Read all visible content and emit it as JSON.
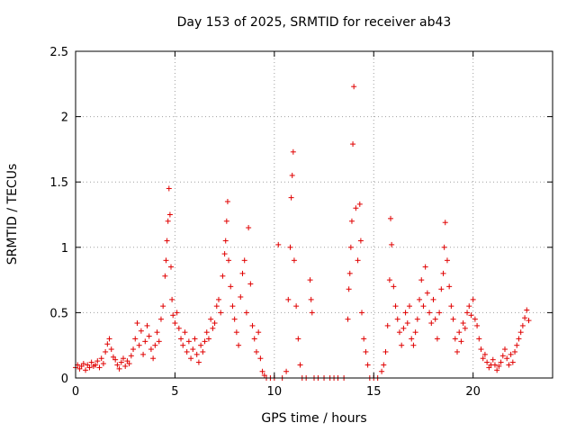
{
  "chart_data": {
    "type": "scatter",
    "title": "Day 153 of 2025, SRMTID for receiver ab43",
    "xlabel": "GPS time / hours",
    "ylabel": "SRMTID / TECUs",
    "xlim": [
      0,
      24
    ],
    "ylim": [
      0,
      2.5
    ],
    "xticks": [
      0,
      5,
      10,
      15,
      20
    ],
    "xtick_labels": [
      "0",
      "5",
      "10",
      "15",
      "20"
    ],
    "yticks": [
      0,
      0.5,
      1,
      1.5,
      2,
      2.5
    ],
    "ytick_labels": [
      "0",
      "0.5",
      "1",
      "1.5",
      "2",
      "2.5"
    ],
    "grid": true,
    "marker": "+",
    "color": "#e00000",
    "series": [
      {
        "name": "SRMTID",
        "points": [
          [
            0.0,
            0.08
          ],
          [
            0.1,
            0.1
          ],
          [
            0.2,
            0.07
          ],
          [
            0.3,
            0.09
          ],
          [
            0.4,
            0.11
          ],
          [
            0.5,
            0.06
          ],
          [
            0.6,
            0.1
          ],
          [
            0.7,
            0.08
          ],
          [
            0.8,
            0.12
          ],
          [
            0.9,
            0.09
          ],
          [
            1.0,
            0.1
          ],
          [
            1.1,
            0.13
          ],
          [
            1.2,
            0.08
          ],
          [
            1.3,
            0.15
          ],
          [
            1.4,
            0.11
          ],
          [
            1.5,
            0.2
          ],
          [
            1.6,
            0.26
          ],
          [
            1.7,
            0.3
          ],
          [
            1.8,
            0.22
          ],
          [
            1.9,
            0.16
          ],
          [
            2.0,
            0.14
          ],
          [
            2.1,
            0.1
          ],
          [
            2.2,
            0.07
          ],
          [
            2.3,
            0.12
          ],
          [
            2.4,
            0.15
          ],
          [
            2.5,
            0.09
          ],
          [
            2.6,
            0.13
          ],
          [
            2.7,
            0.11
          ],
          [
            2.8,
            0.17
          ],
          [
            2.9,
            0.22
          ],
          [
            3.0,
            0.3
          ],
          [
            3.1,
            0.42
          ],
          [
            3.2,
            0.25
          ],
          [
            3.3,
            0.36
          ],
          [
            3.4,
            0.18
          ],
          [
            3.5,
            0.28
          ],
          [
            3.6,
            0.4
          ],
          [
            3.7,
            0.32
          ],
          [
            3.8,
            0.22
          ],
          [
            3.9,
            0.15
          ],
          [
            4.0,
            0.25
          ],
          [
            4.1,
            0.35
          ],
          [
            4.2,
            0.28
          ],
          [
            4.3,
            0.45
          ],
          [
            4.4,
            0.55
          ],
          [
            4.5,
            0.78
          ],
          [
            4.55,
            0.9
          ],
          [
            4.6,
            1.05
          ],
          [
            4.65,
            1.2
          ],
          [
            4.7,
            1.45
          ],
          [
            4.75,
            1.25
          ],
          [
            4.8,
            0.85
          ],
          [
            4.85,
            0.6
          ],
          [
            4.9,
            0.48
          ],
          [
            5.0,
            0.42
          ],
          [
            5.1,
            0.5
          ],
          [
            5.2,
            0.38
          ],
          [
            5.3,
            0.3
          ],
          [
            5.4,
            0.25
          ],
          [
            5.5,
            0.35
          ],
          [
            5.6,
            0.2
          ],
          [
            5.7,
            0.28
          ],
          [
            5.8,
            0.15
          ],
          [
            5.9,
            0.22
          ],
          [
            6.0,
            0.3
          ],
          [
            6.1,
            0.18
          ],
          [
            6.2,
            0.12
          ],
          [
            6.3,
            0.25
          ],
          [
            6.4,
            0.2
          ],
          [
            6.5,
            0.28
          ],
          [
            6.6,
            0.35
          ],
          [
            6.7,
            0.3
          ],
          [
            6.8,
            0.45
          ],
          [
            6.9,
            0.38
          ],
          [
            7.0,
            0.42
          ],
          [
            7.1,
            0.55
          ],
          [
            7.2,
            0.6
          ],
          [
            7.3,
            0.5
          ],
          [
            7.4,
            0.78
          ],
          [
            7.5,
            0.95
          ],
          [
            7.55,
            1.05
          ],
          [
            7.6,
            1.2
          ],
          [
            7.65,
            1.35
          ],
          [
            7.7,
            0.9
          ],
          [
            7.8,
            0.7
          ],
          [
            7.9,
            0.55
          ],
          [
            8.0,
            0.45
          ],
          [
            8.1,
            0.35
          ],
          [
            8.2,
            0.25
          ],
          [
            8.3,
            0.62
          ],
          [
            8.4,
            0.8
          ],
          [
            8.5,
            0.9
          ],
          [
            8.6,
            0.5
          ],
          [
            8.7,
            1.15
          ],
          [
            8.8,
            0.72
          ],
          [
            8.9,
            0.4
          ],
          [
            9.0,
            0.3
          ],
          [
            9.1,
            0.2
          ],
          [
            9.2,
            0.35
          ],
          [
            9.3,
            0.15
          ],
          [
            9.4,
            0.05
          ],
          [
            9.5,
            0.02
          ],
          [
            9.6,
            0.0
          ],
          [
            9.8,
            0.0
          ],
          [
            10.0,
            0.0
          ],
          [
            10.2,
            1.02
          ],
          [
            10.4,
            0.0
          ],
          [
            10.6,
            0.05
          ],
          [
            10.7,
            0.6
          ],
          [
            10.8,
            1.0
          ],
          [
            10.85,
            1.38
          ],
          [
            10.9,
            1.55
          ],
          [
            10.95,
            1.73
          ],
          [
            11.0,
            0.9
          ],
          [
            11.1,
            0.55
          ],
          [
            11.2,
            0.3
          ],
          [
            11.3,
            0.1
          ],
          [
            11.4,
            0.0
          ],
          [
            11.6,
            0.0
          ],
          [
            11.8,
            0.75
          ],
          [
            11.85,
            0.6
          ],
          [
            11.9,
            0.5
          ],
          [
            12.0,
            0.0
          ],
          [
            12.2,
            0.0
          ],
          [
            12.5,
            0.0
          ],
          [
            12.8,
            0.0
          ],
          [
            13.0,
            0.0
          ],
          [
            13.2,
            0.0
          ],
          [
            13.5,
            0.0
          ],
          [
            13.7,
            0.45
          ],
          [
            13.75,
            0.68
          ],
          [
            13.8,
            0.8
          ],
          [
            13.85,
            1.0
          ],
          [
            13.9,
            1.2
          ],
          [
            13.95,
            1.79
          ],
          [
            14.0,
            2.23
          ],
          [
            14.1,
            1.3
          ],
          [
            14.2,
            0.9
          ],
          [
            14.3,
            1.33
          ],
          [
            14.35,
            1.05
          ],
          [
            14.4,
            0.5
          ],
          [
            14.5,
            0.3
          ],
          [
            14.6,
            0.2
          ],
          [
            14.7,
            0.1
          ],
          [
            14.8,
            0.0
          ],
          [
            15.0,
            0.0
          ],
          [
            15.2,
            0.0
          ],
          [
            15.4,
            0.05
          ],
          [
            15.5,
            0.1
          ],
          [
            15.6,
            0.2
          ],
          [
            15.7,
            0.4
          ],
          [
            15.8,
            0.75
          ],
          [
            15.85,
            1.22
          ],
          [
            15.9,
            1.02
          ],
          [
            16.0,
            0.7
          ],
          [
            16.1,
            0.55
          ],
          [
            16.2,
            0.45
          ],
          [
            16.3,
            0.35
          ],
          [
            16.4,
            0.25
          ],
          [
            16.5,
            0.38
          ],
          [
            16.6,
            0.5
          ],
          [
            16.7,
            0.42
          ],
          [
            16.8,
            0.55
          ],
          [
            16.9,
            0.3
          ],
          [
            17.0,
            0.25
          ],
          [
            17.1,
            0.35
          ],
          [
            17.2,
            0.45
          ],
          [
            17.3,
            0.6
          ],
          [
            17.4,
            0.75
          ],
          [
            17.5,
            0.55
          ],
          [
            17.6,
            0.85
          ],
          [
            17.7,
            0.65
          ],
          [
            17.8,
            0.5
          ],
          [
            17.9,
            0.42
          ],
          [
            18.0,
            0.6
          ],
          [
            18.1,
            0.45
          ],
          [
            18.2,
            0.3
          ],
          [
            18.3,
            0.5
          ],
          [
            18.4,
            0.68
          ],
          [
            18.5,
            0.8
          ],
          [
            18.55,
            1.0
          ],
          [
            18.6,
            1.19
          ],
          [
            18.7,
            0.9
          ],
          [
            18.8,
            0.7
          ],
          [
            18.9,
            0.55
          ],
          [
            19.0,
            0.45
          ],
          [
            19.1,
            0.3
          ],
          [
            19.2,
            0.2
          ],
          [
            19.3,
            0.35
          ],
          [
            19.4,
            0.28
          ],
          [
            19.5,
            0.42
          ],
          [
            19.6,
            0.38
          ],
          [
            19.7,
            0.5
          ],
          [
            19.8,
            0.55
          ],
          [
            19.9,
            0.48
          ],
          [
            20.0,
            0.6
          ],
          [
            20.1,
            0.45
          ],
          [
            20.2,
            0.4
          ],
          [
            20.3,
            0.3
          ],
          [
            20.4,
            0.22
          ],
          [
            20.5,
            0.15
          ],
          [
            20.6,
            0.18
          ],
          [
            20.7,
            0.12
          ],
          [
            20.8,
            0.08
          ],
          [
            20.9,
            0.1
          ],
          [
            21.0,
            0.14
          ],
          [
            21.1,
            0.1
          ],
          [
            21.2,
            0.06
          ],
          [
            21.3,
            0.09
          ],
          [
            21.4,
            0.12
          ],
          [
            21.5,
            0.17
          ],
          [
            21.6,
            0.22
          ],
          [
            21.7,
            0.15
          ],
          [
            21.8,
            0.1
          ],
          [
            21.9,
            0.18
          ],
          [
            22.0,
            0.12
          ],
          [
            22.1,
            0.2
          ],
          [
            22.2,
            0.25
          ],
          [
            22.3,
            0.3
          ],
          [
            22.4,
            0.35
          ],
          [
            22.5,
            0.4
          ],
          [
            22.6,
            0.46
          ],
          [
            22.7,
            0.52
          ],
          [
            22.8,
            0.44
          ]
        ]
      }
    ]
  }
}
